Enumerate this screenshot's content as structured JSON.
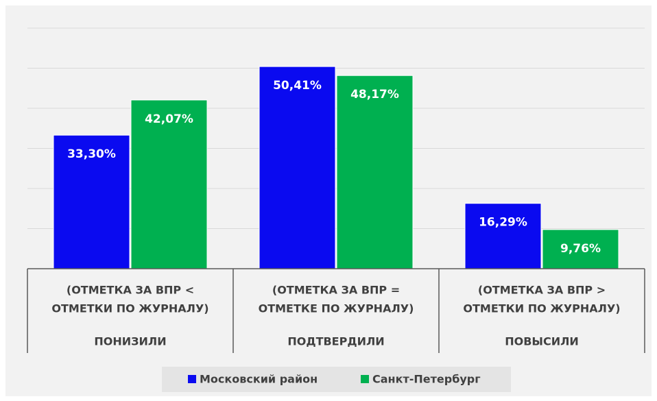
{
  "chart_data": {
    "type": "bar",
    "categories": [
      "ПОНИЗИЛИ",
      "ПОДТВЕРДИЛИ",
      "ПОВЫСИЛИ"
    ],
    "category_details": [
      [
        "(ОТМЕТКА ЗА ВПР <",
        "ОТМЕТКИ ПО ЖУРНАЛУ)"
      ],
      [
        "(ОТМЕТКА ЗА ВПР =",
        "ОТМЕТКЕ ПО ЖУРНАЛУ)"
      ],
      [
        "(ОТМЕТКА ЗА ВПР >",
        "ОТМЕТКИ ПО ЖУРНАЛУ)"
      ]
    ],
    "series": [
      {
        "name": "Московский район",
        "color": "#0a0af0",
        "values": [
          33.3,
          50.41,
          16.29
        ],
        "value_labels": [
          "33,30%",
          "50,41%",
          "16,29%"
        ]
      },
      {
        "name": "Санкт-Петербург",
        "color": "#00b050",
        "values": [
          42.07,
          48.17,
          9.76
        ],
        "value_labels": [
          "42,07%",
          "48,17%",
          "9,76%"
        ]
      }
    ],
    "ylim": [
      0,
      60
    ],
    "yticks": [
      0,
      10,
      20,
      30,
      40,
      50,
      60
    ],
    "grid": true,
    "legend": "bottom"
  }
}
